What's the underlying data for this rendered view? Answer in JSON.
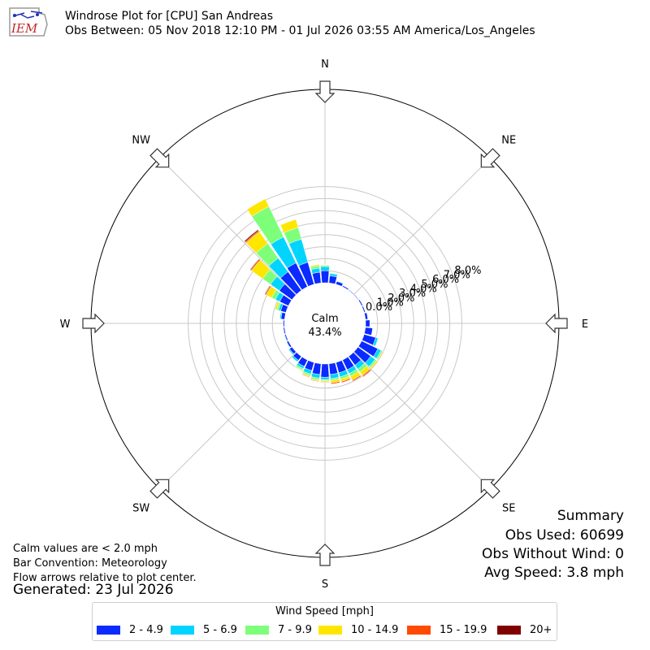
{
  "header": {
    "logo_text": "IEM",
    "title": "Windrose Plot for [CPU] San Andreas",
    "subtitle": "Obs Between: 05 Nov 2018 12:10 PM - 01 Jul 2026 03:55 AM America/Los_Angeles"
  },
  "notes": {
    "calm_values": "Calm values are < 2.0 mph",
    "bar_convention": "Bar Convention: Meteorology",
    "flow_arrows": "Flow arrows relative to plot center.",
    "generated": "Generated: 23 Jul 2026"
  },
  "summary": {
    "title": "Summary",
    "obs_used": "Obs Used: 60699",
    "obs_without_wind": "Obs Without Wind: 0",
    "avg_speed": "Avg Speed: 3.8 mph"
  },
  "legend": {
    "title": "Wind Speed [mph]",
    "items": [
      {
        "label": "2 - 4.9",
        "color": "#0a2aff"
      },
      {
        "label": "5 - 6.9",
        "color": "#00d4ff"
      },
      {
        "label": "7 - 9.9",
        "color": "#7dff7a"
      },
      {
        "label": "10 - 14.9",
        "color": "#ffe600"
      },
      {
        "label": "15 - 19.9",
        "color": "#ff4a00"
      },
      {
        "label": "20+",
        "color": "#800000"
      }
    ]
  },
  "chart_data": {
    "type": "windrose",
    "calm_label": "Calm",
    "calm_percent_label": "43.4%",
    "calm_percent": 43.4,
    "radial_ticks": [
      "0.0%",
      "1.0%",
      "2.0%",
      "3.0%",
      "4.0%",
      "5.0%",
      "6.0%",
      "7.0%",
      "8.0%"
    ],
    "radial_range": [
      0,
      8
    ],
    "grid": true,
    "direction_labels": [
      "N",
      "NE",
      "E",
      "SE",
      "S",
      "SW",
      "W",
      "NW"
    ],
    "speed_bins": [
      "2 - 4.9",
      "5 - 6.9",
      "7 - 9.9",
      "10 - 14.9",
      "15 - 19.9",
      "20+"
    ],
    "directions_deg": [
      0,
      10,
      20,
      30,
      40,
      50,
      60,
      70,
      80,
      90,
      100,
      110,
      120,
      130,
      140,
      150,
      160,
      170,
      180,
      190,
      200,
      210,
      220,
      230,
      240,
      250,
      260,
      270,
      280,
      290,
      300,
      310,
      320,
      330,
      340,
      350
    ],
    "series_cumulative_percent": [
      [
        1.0,
        1.35,
        1.45,
        1.5,
        1.52,
        1.52
      ],
      [
        0.6,
        0.8,
        0.85,
        0.85,
        0.85,
        0.85
      ],
      [
        0.25,
        0.3,
        0.3,
        0.3,
        0.3,
        0.3
      ],
      [
        0.1,
        0.1,
        0.1,
        0.1,
        0.1,
        0.1
      ],
      [
        0.05,
        0.05,
        0.05,
        0.05,
        0.05,
        0.05
      ],
      [
        0.05,
        0.05,
        0.05,
        0.05,
        0.05,
        0.05
      ],
      [
        0.1,
        0.1,
        0.1,
        0.1,
        0.1,
        0.1
      ],
      [
        0.1,
        0.1,
        0.1,
        0.1,
        0.1,
        0.1
      ],
      [
        0.2,
        0.2,
        0.2,
        0.2,
        0.2,
        0.2
      ],
      [
        0.35,
        0.35,
        0.35,
        0.35,
        0.35,
        0.35
      ],
      [
        0.6,
        0.6,
        0.6,
        0.6,
        0.6,
        0.6
      ],
      [
        1.0,
        1.2,
        1.25,
        1.25,
        1.25,
        1.25
      ],
      [
        1.5,
        1.8,
        1.95,
        2.0,
        2.05,
        2.05
      ],
      [
        1.3,
        1.75,
        1.9,
        2.0,
        2.05,
        2.05
      ],
      [
        0.9,
        1.3,
        1.6,
        1.95,
        2.05,
        2.1
      ],
      [
        0.9,
        1.25,
        1.5,
        1.85,
        1.95,
        1.95
      ],
      [
        0.9,
        1.25,
        1.45,
        1.65,
        1.75,
        1.75
      ],
      [
        0.9,
        1.25,
        1.4,
        1.6,
        1.7,
        1.7
      ],
      [
        1.1,
        1.3,
        1.4,
        1.5,
        1.55,
        1.55
      ],
      [
        0.9,
        1.2,
        1.35,
        1.45,
        1.5,
        1.5
      ],
      [
        0.7,
        1.0,
        1.15,
        1.25,
        1.3,
        1.3
      ],
      [
        0.6,
        0.8,
        0.95,
        1.0,
        1.0,
        1.0
      ],
      [
        0.4,
        0.55,
        0.6,
        0.62,
        0.62,
        0.62
      ],
      [
        0.25,
        0.35,
        0.38,
        0.4,
        0.4,
        0.4
      ],
      [
        0.15,
        0.2,
        0.22,
        0.22,
        0.22,
        0.22
      ],
      [
        0.1,
        0.15,
        0.15,
        0.15,
        0.15,
        0.15
      ],
      [
        0.1,
        0.1,
        0.1,
        0.1,
        0.1,
        0.1
      ],
      [
        0.1,
        0.1,
        0.1,
        0.1,
        0.1,
        0.1
      ],
      [
        0.3,
        0.4,
        0.45,
        0.45,
        0.45,
        0.45
      ],
      [
        0.45,
        0.65,
        0.8,
        0.95,
        0.95,
        0.95
      ],
      [
        0.8,
        1.2,
        1.55,
        2.05,
        2.15,
        2.2
      ],
      [
        1.3,
        2.2,
        3.0,
        4.15,
        4.25,
        4.3
      ],
      [
        1.9,
        3.3,
        4.8,
        6.0,
        6.1,
        6.2
      ],
      [
        2.2,
        4.6,
        7.4,
        8.1,
        8.1,
        8.1
      ],
      [
        1.9,
        3.9,
        4.9,
        5.6,
        5.6,
        5.6
      ],
      [
        0.9,
        1.25,
        1.45,
        1.55,
        1.55,
        1.55
      ]
    ]
  }
}
